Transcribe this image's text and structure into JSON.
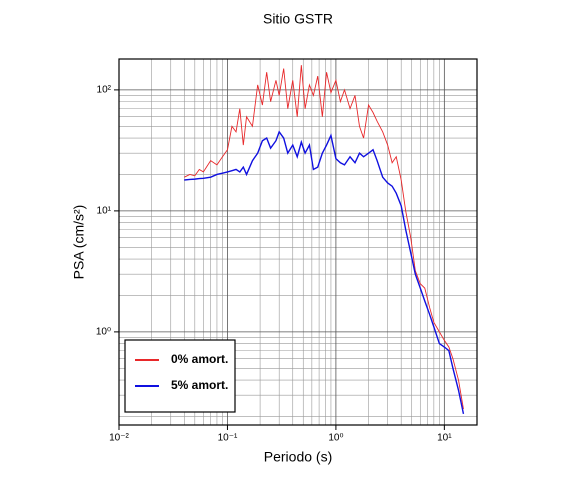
{
  "chart_data": {
    "type": "line",
    "title": "Sitio GSTR",
    "xlabel": "Periodo (s)",
    "ylabel": "PSA (cm/s²)",
    "xscale": "log",
    "yscale": "log",
    "grid": true,
    "legend": "lower left",
    "xlim": [
      0.01,
      20
    ],
    "ylim": [
      0.17,
      180
    ],
    "xticks": [
      {
        "value": 0.01,
        "label": "10⁻²"
      },
      {
        "value": 0.1,
        "label": "10⁻¹"
      },
      {
        "value": 1,
        "label": "10⁰"
      },
      {
        "value": 10,
        "label": "10¹"
      }
    ],
    "yticks": [
      {
        "value": 1,
        "label": "10⁰"
      },
      {
        "value": 10,
        "label": "10¹"
      },
      {
        "value": 100,
        "label": "10²"
      }
    ],
    "xminorticks": [
      0.02,
      0.03,
      0.04,
      0.05,
      0.06,
      0.07,
      0.08,
      0.09,
      0.2,
      0.3,
      0.4,
      0.5,
      0.6,
      0.7,
      0.8,
      0.9,
      2,
      3,
      4,
      5,
      6,
      7,
      8,
      9
    ],
    "yminorticks": [
      0.2,
      0.3,
      0.4,
      0.5,
      0.6,
      0.7,
      0.8,
      0.9,
      2,
      3,
      4,
      5,
      6,
      7,
      8,
      9,
      20,
      30,
      40,
      50,
      60,
      70,
      80,
      90
    ],
    "x": [
      0.04,
      0.045,
      0.05,
      0.055,
      0.06,
      0.07,
      0.08,
      0.09,
      0.1,
      0.11,
      0.12,
      0.13,
      0.14,
      0.15,
      0.17,
      0.19,
      0.21,
      0.23,
      0.25,
      0.28,
      0.3,
      0.33,
      0.36,
      0.4,
      0.44,
      0.48,
      0.52,
      0.57,
      0.62,
      0.68,
      0.75,
      0.82,
      0.9,
      1.0,
      1.1,
      1.2,
      1.35,
      1.5,
      1.65,
      1.8,
      2.0,
      2.2,
      2.4,
      2.7,
      3.0,
      3.3,
      3.6,
      4.0,
      4.4,
      4.9,
      5.4,
      6.0,
      6.6,
      7.3,
      8.0,
      9.0,
      10,
      11,
      12,
      13.5,
      15
    ],
    "series": [
      {
        "name": "0% amort.",
        "color": "#e8282a",
        "values": [
          19,
          20,
          19.5,
          22,
          21,
          26,
          24,
          28,
          32,
          50,
          45,
          70,
          35,
          60,
          50,
          110,
          75,
          140,
          80,
          120,
          90,
          150,
          70,
          120,
          60,
          160,
          70,
          110,
          90,
          130,
          60,
          140,
          95,
          120,
          80,
          100,
          70,
          90,
          50,
          40,
          75,
          65,
          55,
          45,
          35,
          25,
          28,
          18,
          10,
          6,
          3.2,
          2.5,
          2.3,
          1.6,
          1.2,
          1.0,
          0.85,
          0.75,
          0.6,
          0.4,
          0.23
        ]
      },
      {
        "name": "5% amort.",
        "color": "#1010e0",
        "values": [
          18,
          18.2,
          18.3,
          18.5,
          18.6,
          19,
          20,
          20.5,
          21,
          21.5,
          22,
          21,
          23,
          20,
          26,
          30,
          38,
          40,
          33,
          38,
          45,
          40,
          30,
          35,
          28,
          37,
          30,
          35,
          22,
          23,
          30,
          35,
          42,
          27,
          25,
          24,
          28,
          25,
          30,
          28,
          30,
          32,
          26,
          19,
          17,
          16,
          14,
          11,
          7,
          4.5,
          3,
          2.3,
          1.8,
          1.4,
          1.1,
          0.8,
          0.75,
          0.7,
          0.5,
          0.33,
          0.21
        ]
      }
    ]
  }
}
